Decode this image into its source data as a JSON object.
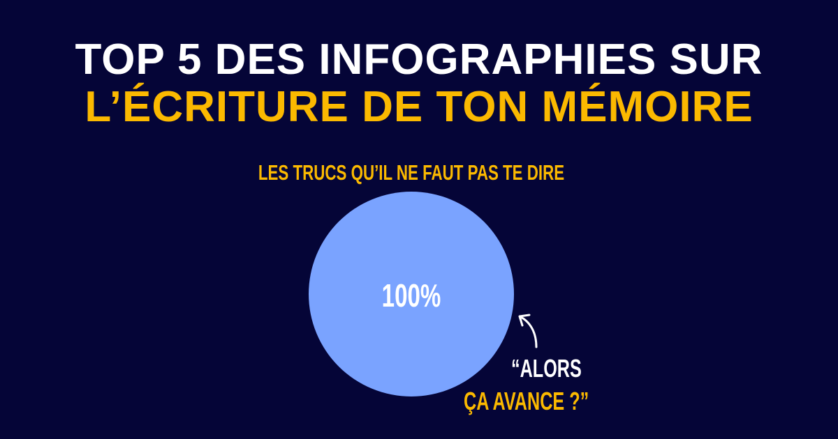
{
  "title": {
    "line1": "TOP 5 DES INFOGRAPHIES SUR",
    "line2": "L’ÉCRITURE DE TON MÉMOIRE"
  },
  "chart_data": {
    "type": "pie",
    "title": "LES TRUCS QU’IL NE FAUT PAS TE DIRE",
    "slices": [
      {
        "value": 100,
        "label": "100%",
        "color": "#7aa3ff"
      }
    ],
    "annotation": {
      "line1": "“ALORS",
      "line2": "ÇA AVANCE ?”"
    }
  },
  "colors": {
    "background": "#050537",
    "accent": "#fbb900",
    "pie": "#7aa3ff"
  }
}
